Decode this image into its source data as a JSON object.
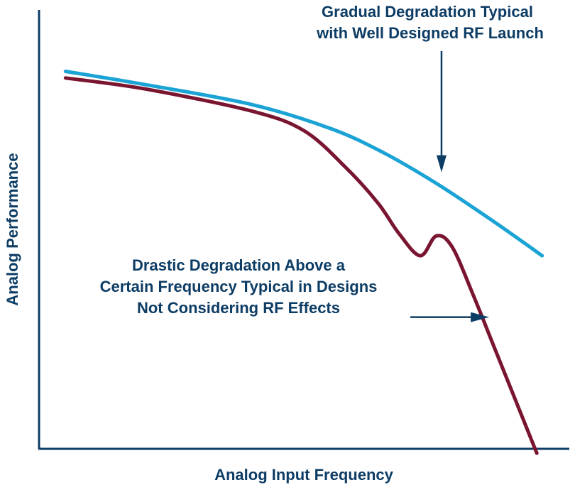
{
  "chart_data": {
    "type": "line",
    "title": "",
    "xlabel": "Analog Input Frequency",
    "ylabel": "Analog Performance",
    "xlim": [
      0,
      100
    ],
    "ylim": [
      0,
      100
    ],
    "grid": false,
    "series": [
      {
        "name": "Well Designed RF Launch",
        "color": "#1aa3d4",
        "x": [
          5,
          20,
          40,
          55,
          65,
          75,
          85,
          95
        ],
        "y": [
          86,
          83,
          78.5,
          73,
          67.5,
          60.5,
          52.5,
          44
        ]
      },
      {
        "name": "Not Considering RF Effects",
        "color": "#7a1530",
        "x": [
          5,
          20,
          40,
          50,
          58,
          64,
          68,
          72,
          75,
          78,
          82,
          86,
          90,
          94
        ],
        "y": [
          84.5,
          82,
          77,
          72.5,
          64,
          56,
          49,
          44,
          48.5,
          46,
          35,
          23,
          11,
          -1
        ]
      }
    ],
    "annotations": [
      {
        "id": "gradual",
        "lines": [
          "Gradual Degradation Typical",
          "with Well Designed RF Launch"
        ],
        "arrow": "down",
        "target": [
          76,
          63
        ]
      },
      {
        "id": "drastic",
        "lines": [
          "Drastic Degradation Above a",
          "Certain Frequency Typical in Designs",
          "Not Considering RF Effects"
        ],
        "arrow": "right",
        "target": [
          85,
          30
        ]
      }
    ]
  }
}
